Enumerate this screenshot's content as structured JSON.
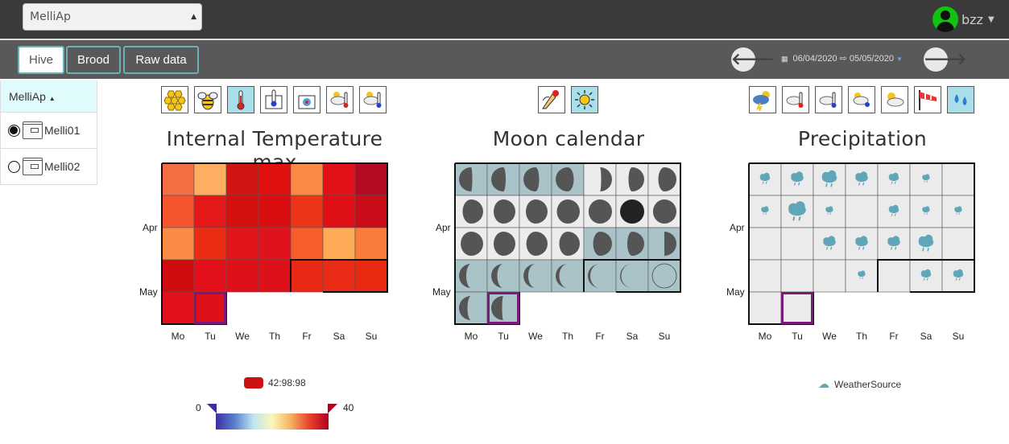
{
  "app_select": {
    "value": "MelliAp"
  },
  "user": {
    "name": "bzz"
  },
  "tabs": [
    {
      "label": "Hive"
    },
    {
      "label": "Brood"
    },
    {
      "label": "Raw data"
    }
  ],
  "date_range": {
    "label": "06/04/2020 ⇨ 05/05/2020"
  },
  "sidebar": {
    "header": "MelliAp",
    "items": [
      {
        "label": "Melli01",
        "selected": true
      },
      {
        "label": "Melli02",
        "selected": false
      }
    ]
  },
  "icon_groups": {
    "left": [
      "honeycomb-icon",
      "bee-icon",
      "thermometer-icon",
      "hive-thermometer-icon",
      "hive-temperature-icon",
      "weather-temperature-icon",
      "weather-temperature-cold-icon"
    ],
    "middle": [
      "alert-icon",
      "sun-moon-icon"
    ],
    "right": [
      "storm-icon",
      "weather-thermometer-icon",
      "weather-cold-icon",
      "snow-weather-icon",
      "sunny-cloudy-icon",
      "windsock-icon",
      "water-drops-icon"
    ]
  },
  "colors": {
    "topbar": "#3a3a3a",
    "toolbar": "#595959",
    "accent": "#6ab0b8",
    "selected_icon": "#a8dfe8",
    "highlight_border": "#7b1a7b"
  },
  "charts": [
    {
      "title": "Internal Temperature max",
      "y_labels": [
        "Apr",
        "May"
      ],
      "x_labels": [
        "Mo",
        "Tu",
        "We",
        "Th",
        "Fr",
        "Sa",
        "Su"
      ],
      "legend_label": "42:98:98",
      "scale_min": "0",
      "scale_max": "40"
    },
    {
      "title": "Moon calendar",
      "y_labels": [
        "Apr",
        "May"
      ],
      "x_labels": [
        "Mo",
        "Tu",
        "We",
        "Th",
        "Fr",
        "Sa",
        "Su"
      ]
    },
    {
      "title": "Precipitation",
      "y_labels": [
        "Apr",
        "May"
      ],
      "x_labels": [
        "Mo",
        "Tu",
        "We",
        "Th",
        "Fr",
        "Sa",
        "Su"
      ],
      "legend_label": "WeatherSource"
    }
  ],
  "chart_data": [
    {
      "type": "heatmap",
      "title": "Internal Temperature max",
      "colors": [
        [
          "#f46d43",
          "#fdae61",
          "#d11414",
          "#e0100f",
          "#fb8a47",
          "#e3101a",
          "#b20b22"
        ],
        [
          "#f4552e",
          "#e5181a",
          "#d51010",
          "#da0d10",
          "#ec3419",
          "#df1015",
          "#c90d18"
        ],
        [
          "#f98b45",
          "#eb2c14",
          "#e0161a",
          "#e0121b",
          "#f65c2c",
          "#fdab56",
          "#fb7b3a"
        ],
        [
          "#d10c10",
          "#e3101c",
          "#de111b",
          "#dd111a",
          "#ea2914",
          "#ea2c16",
          "#e82a12"
        ],
        [
          "#e2101c",
          "#e0101a",
          null,
          null,
          null,
          null,
          null
        ]
      ],
      "highlight": [
        4,
        1
      ]
    },
    {
      "type": "heatmap",
      "title": "Moon calendar",
      "phases": [
        [
          -0.55,
          -0.6,
          -0.65,
          -0.75,
          0.45,
          0.65,
          0.75
        ],
        [
          0.85,
          0.9,
          0.9,
          0.95,
          0.97,
          1.0,
          0.97
        ],
        [
          0.93,
          0.9,
          0.88,
          0.85,
          0.78,
          0.7,
          0.5
        ],
        [
          -0.3,
          -0.25,
          -0.2,
          -0.15,
          -0.1,
          -0.05,
          0
        ],
        [
          -0.35,
          -0.45,
          null,
          null,
          null,
          null,
          null
        ]
      ],
      "shaded": [
        [
          true,
          true,
          true,
          true,
          false,
          false,
          false
        ],
        [
          false,
          false,
          false,
          false,
          false,
          false,
          false
        ],
        [
          false,
          false,
          false,
          false,
          true,
          true,
          true
        ],
        [
          true,
          true,
          true,
          true,
          true,
          true,
          true
        ],
        [
          true,
          true,
          null,
          null,
          null,
          null,
          null
        ]
      ],
      "highlight": [
        4,
        1
      ]
    },
    {
      "type": "heatmap",
      "title": "Precipitation",
      "series_name": "WeatherSource",
      "intensity": [
        [
          2,
          3,
          4,
          3,
          2,
          1,
          0
        ],
        [
          1,
          5,
          1,
          0,
          2,
          1,
          1
        ],
        [
          0,
          0,
          3,
          3,
          3,
          4,
          0
        ],
        [
          0,
          0,
          0,
          1,
          0,
          2,
          2
        ],
        [
          0,
          0,
          null,
          null,
          null,
          null,
          null
        ]
      ],
      "highlight": [
        4,
        1
      ]
    }
  ]
}
